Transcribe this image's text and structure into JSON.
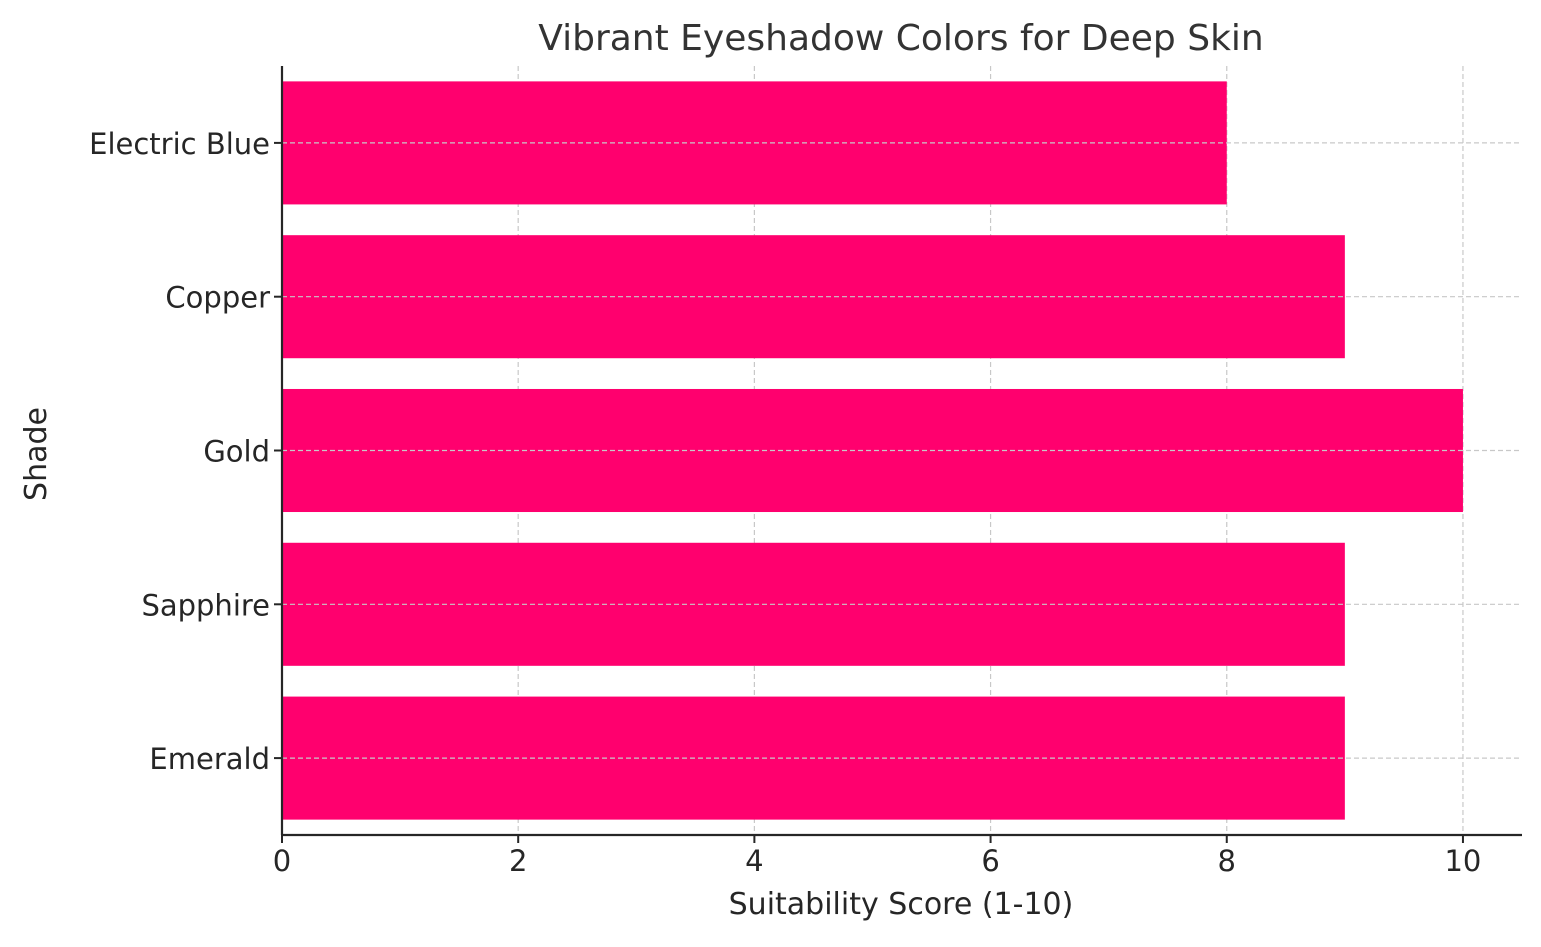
{
  "chart_data": {
    "type": "bar",
    "orientation": "horizontal",
    "title": "Vibrant Eyeshadow Colors for Deep Skin",
    "xlabel": "Suitability Score (1-10)",
    "ylabel": "Shade",
    "categories": [
      "Emerald",
      "Sapphire",
      "Gold",
      "Copper",
      "Electric Blue"
    ],
    "values": [
      9,
      9,
      10,
      9,
      8
    ],
    "xlim": [
      0,
      10.5
    ],
    "xticks": [
      0,
      2,
      4,
      6,
      8,
      10
    ],
    "grid": true,
    "bar_color": "#ff006e",
    "text_color": "#262626",
    "grid_color": "#c8c8c8"
  }
}
